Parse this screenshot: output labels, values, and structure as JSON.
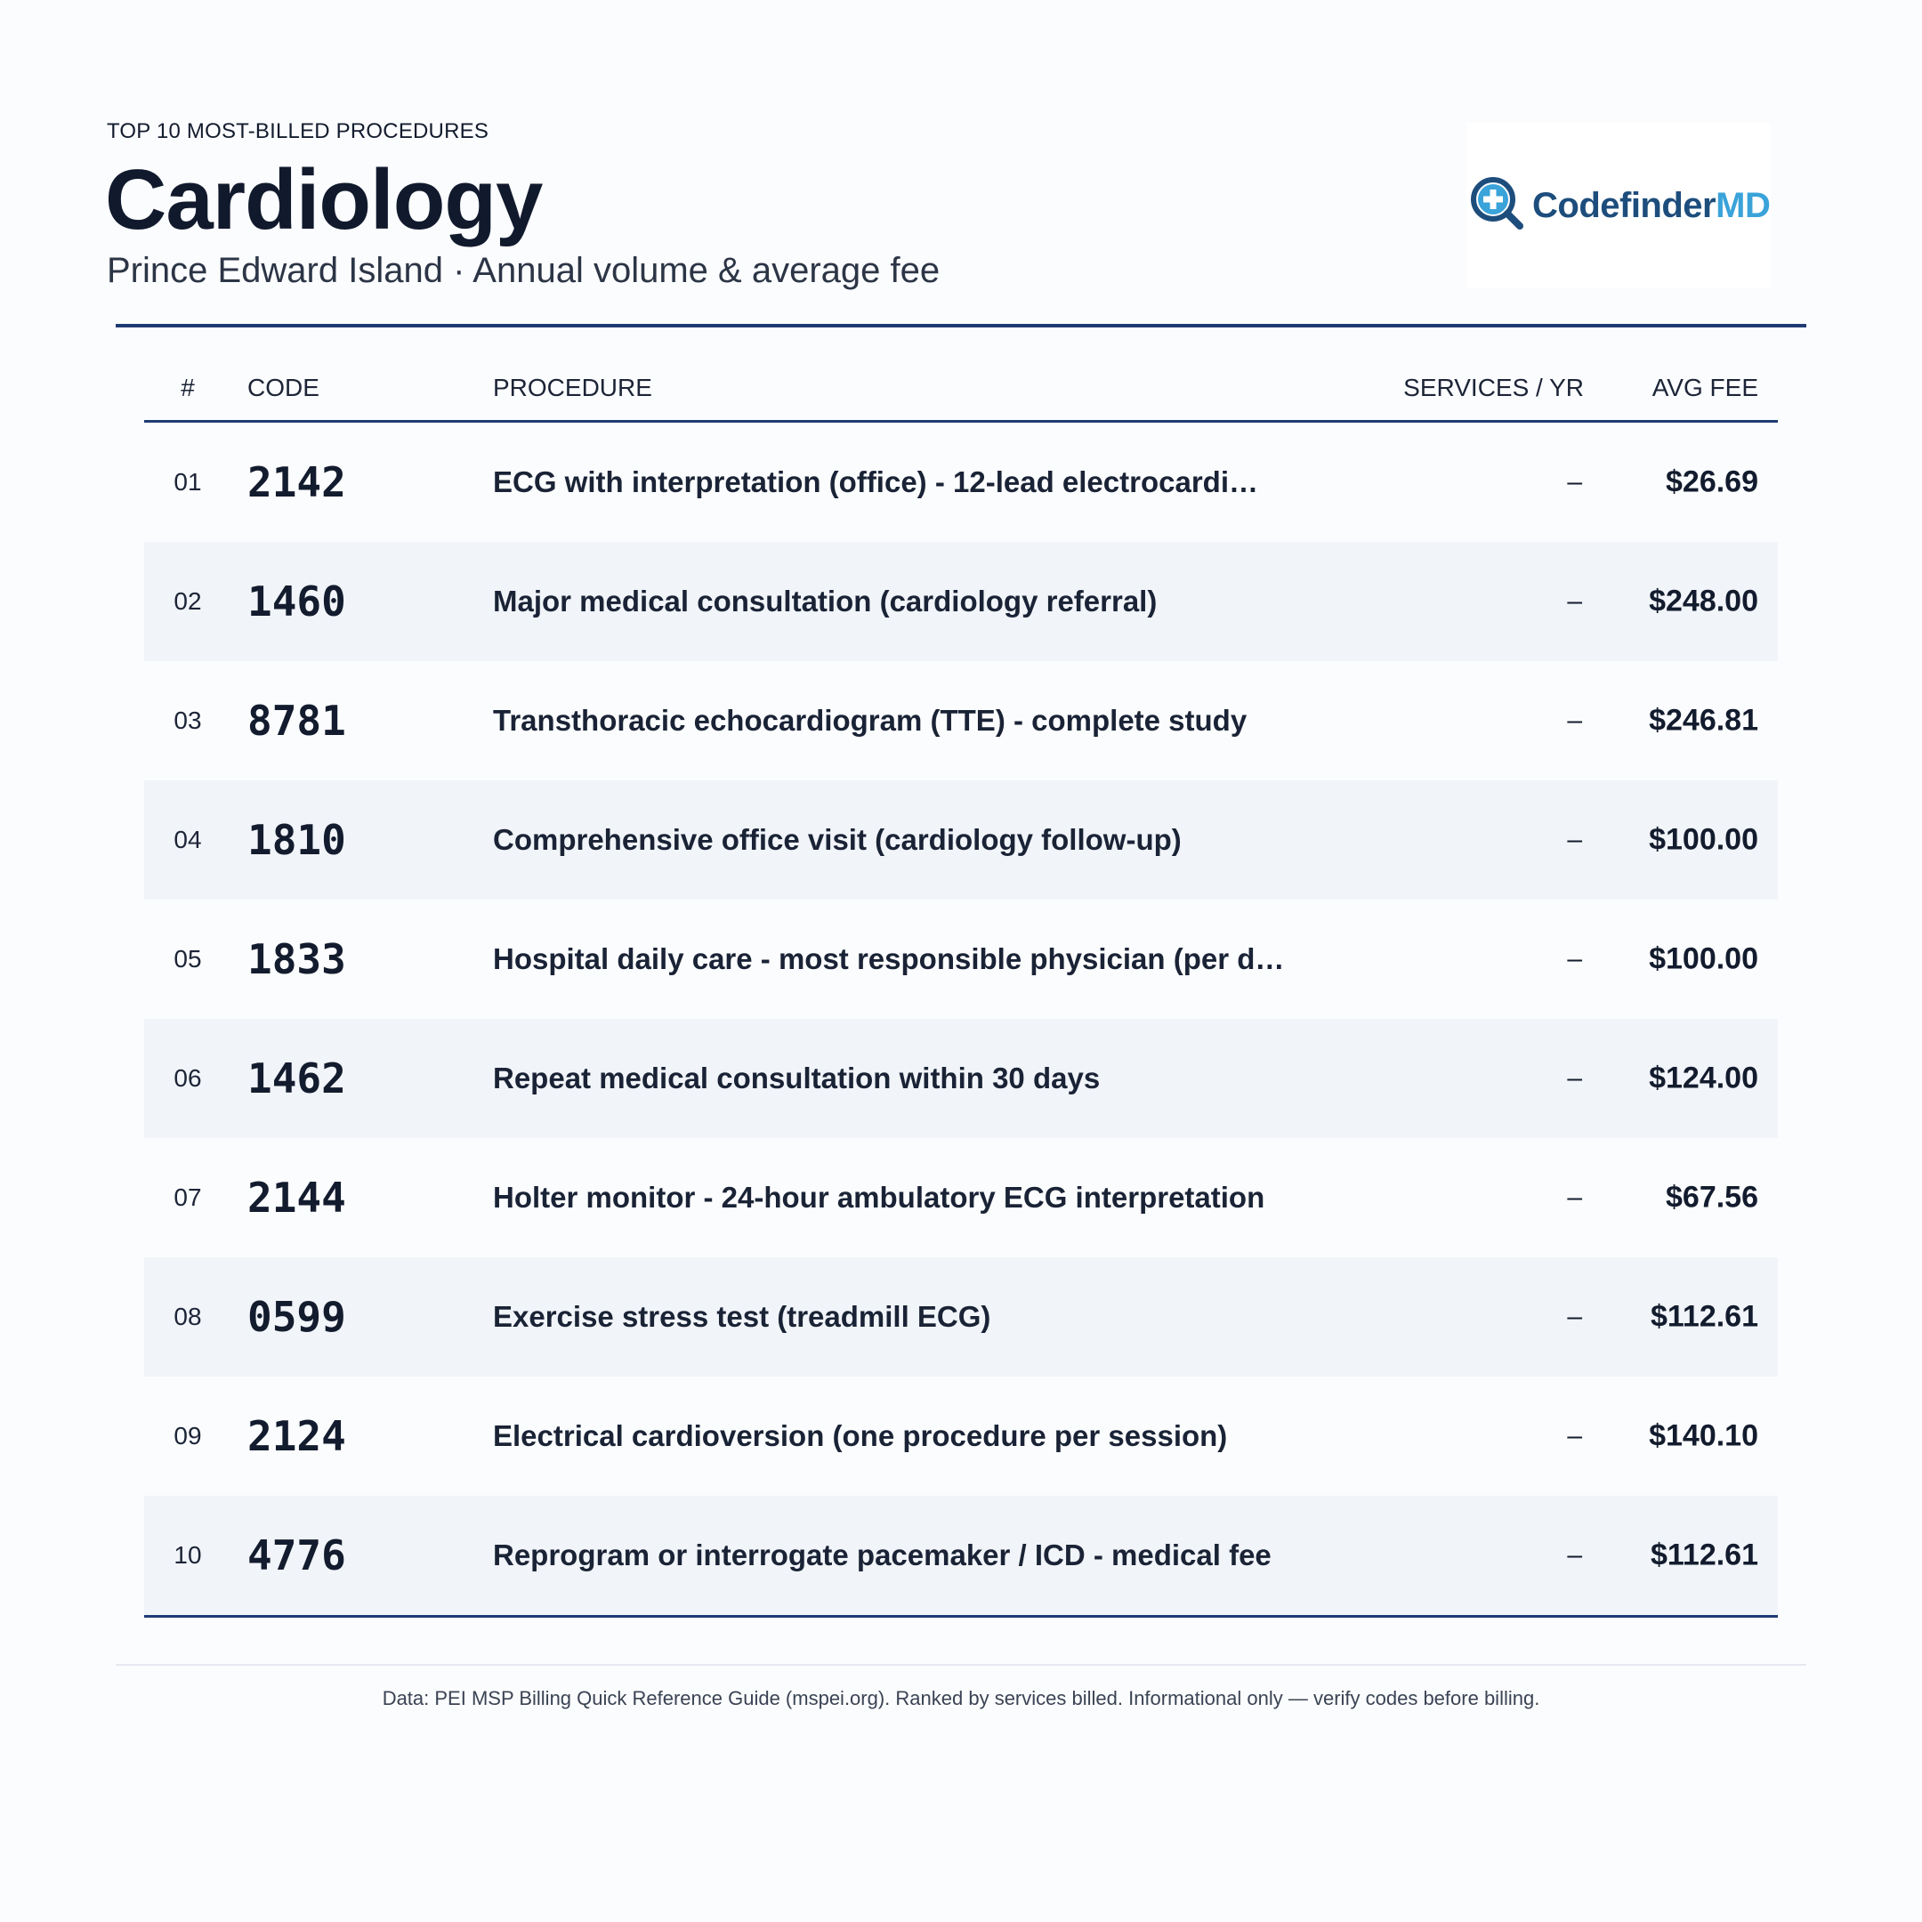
{
  "header": {
    "eyebrow": "TOP 10 MOST-BILLED PROCEDURES",
    "title": "Cardiology",
    "subtitle": "Prince Edward Island · Annual volume & average fee"
  },
  "logo": {
    "part1": "Codefinder",
    "part2": "MD",
    "icon": "magnifier-plus-icon",
    "colors": {
      "dark": "#1d4d7c",
      "light": "#3aa3d9"
    }
  },
  "table": {
    "columns": {
      "rank": "#",
      "code": "CODE",
      "procedure": "PROCEDURE",
      "services": "SERVICES / YR",
      "fee": "AVG FEE"
    },
    "rows": [
      {
        "rank": "01",
        "code": "2142",
        "procedure": "ECG with interpretation (office) - 12-lead electrocardi…",
        "services": "–",
        "fee": "$26.69"
      },
      {
        "rank": "02",
        "code": "1460",
        "procedure": "Major medical consultation (cardiology referral)",
        "services": "–",
        "fee": "$248.00"
      },
      {
        "rank": "03",
        "code": "8781",
        "procedure": "Transthoracic echocardiogram (TTE) - complete study",
        "services": "–",
        "fee": "$246.81"
      },
      {
        "rank": "04",
        "code": "1810",
        "procedure": "Comprehensive office visit (cardiology follow-up)",
        "services": "–",
        "fee": "$100.00"
      },
      {
        "rank": "05",
        "code": "1833",
        "procedure": "Hospital daily care - most responsible physician (per d…",
        "services": "–",
        "fee": "$100.00"
      },
      {
        "rank": "06",
        "code": "1462",
        "procedure": "Repeat medical consultation within 30 days",
        "services": "–",
        "fee": "$124.00"
      },
      {
        "rank": "07",
        "code": "2144",
        "procedure": "Holter monitor - 24-hour ambulatory ECG interpretation",
        "services": "–",
        "fee": "$67.56"
      },
      {
        "rank": "08",
        "code": "0599",
        "procedure": "Exercise stress test (treadmill ECG)",
        "services": "–",
        "fee": "$112.61"
      },
      {
        "rank": "09",
        "code": "2124",
        "procedure": "Electrical cardioversion (one procedure per session)",
        "services": "–",
        "fee": "$140.10"
      },
      {
        "rank": "10",
        "code": "4776",
        "procedure": "Reprogram or interrogate pacemaker / ICD - medical fee",
        "services": "–",
        "fee": "$112.61"
      }
    ]
  },
  "footer": {
    "text": "Data: PEI MSP Billing Quick Reference Guide (mspei.org). Ranked by services billed. Informational only — verify codes before billing."
  },
  "colors": {
    "accent": "#1f3b73",
    "stripe": "#f1f4f8",
    "text": "#131c2e"
  }
}
